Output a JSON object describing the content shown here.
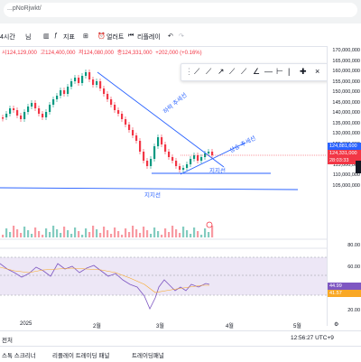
{
  "browser": {
    "url": "...pNoRjwkt/"
  },
  "toolbar": {
    "interval": "4시간",
    "chart_type_label": "님",
    "indicators": "지표",
    "alerts": "얼러트",
    "replay": "리플레이"
  },
  "legend": {
    "open": "시124,129,000",
    "high": "고124,400,000",
    "low": "저124,080,000",
    "close": "종124,331,000",
    "change": "+202,000 (+0.16%)"
  },
  "price_axis": {
    "labels": [
      "170,000,000",
      "165,000,000",
      "160,000,000",
      "155,000,000",
      "150,000,000",
      "145,000,000",
      "140,000,000",
      "135,000,000",
      "130,000,000",
      "125,000,000",
      "120,000,000",
      "115,000,000",
      "110,000,000",
      "105,000,000"
    ],
    "tag_blue": "124,881,600",
    "tag_red": "124,331,000",
    "tag_red_time": "28:03:33",
    "tag_rsi_1": "44.99",
    "tag_rsi_2": "41.57",
    "rsi_labels": [
      "80.00",
      "60.00",
      "20.00"
    ]
  },
  "annotations": {
    "falling_trendline": "하락 추세선",
    "rising_trendline": "상승 추세선",
    "support_line": "지지선",
    "horizontal_support": "지지선"
  },
  "date_axis": {
    "labels": [
      "2025",
      "2월",
      "3월",
      "4월",
      "5월"
    ]
  },
  "status": {
    "time": "12:56:27 UTC+9",
    "range_label": "전처"
  },
  "panels": {
    "p1": "스톡 스크리너",
    "p2": "리플레이 트레이딩 패널",
    "p3": "트레이딩패널"
  },
  "colors": {
    "up": "#089981",
    "down": "#f23645",
    "line": "#2962ff",
    "rsi": "#7e57c2"
  }
}
